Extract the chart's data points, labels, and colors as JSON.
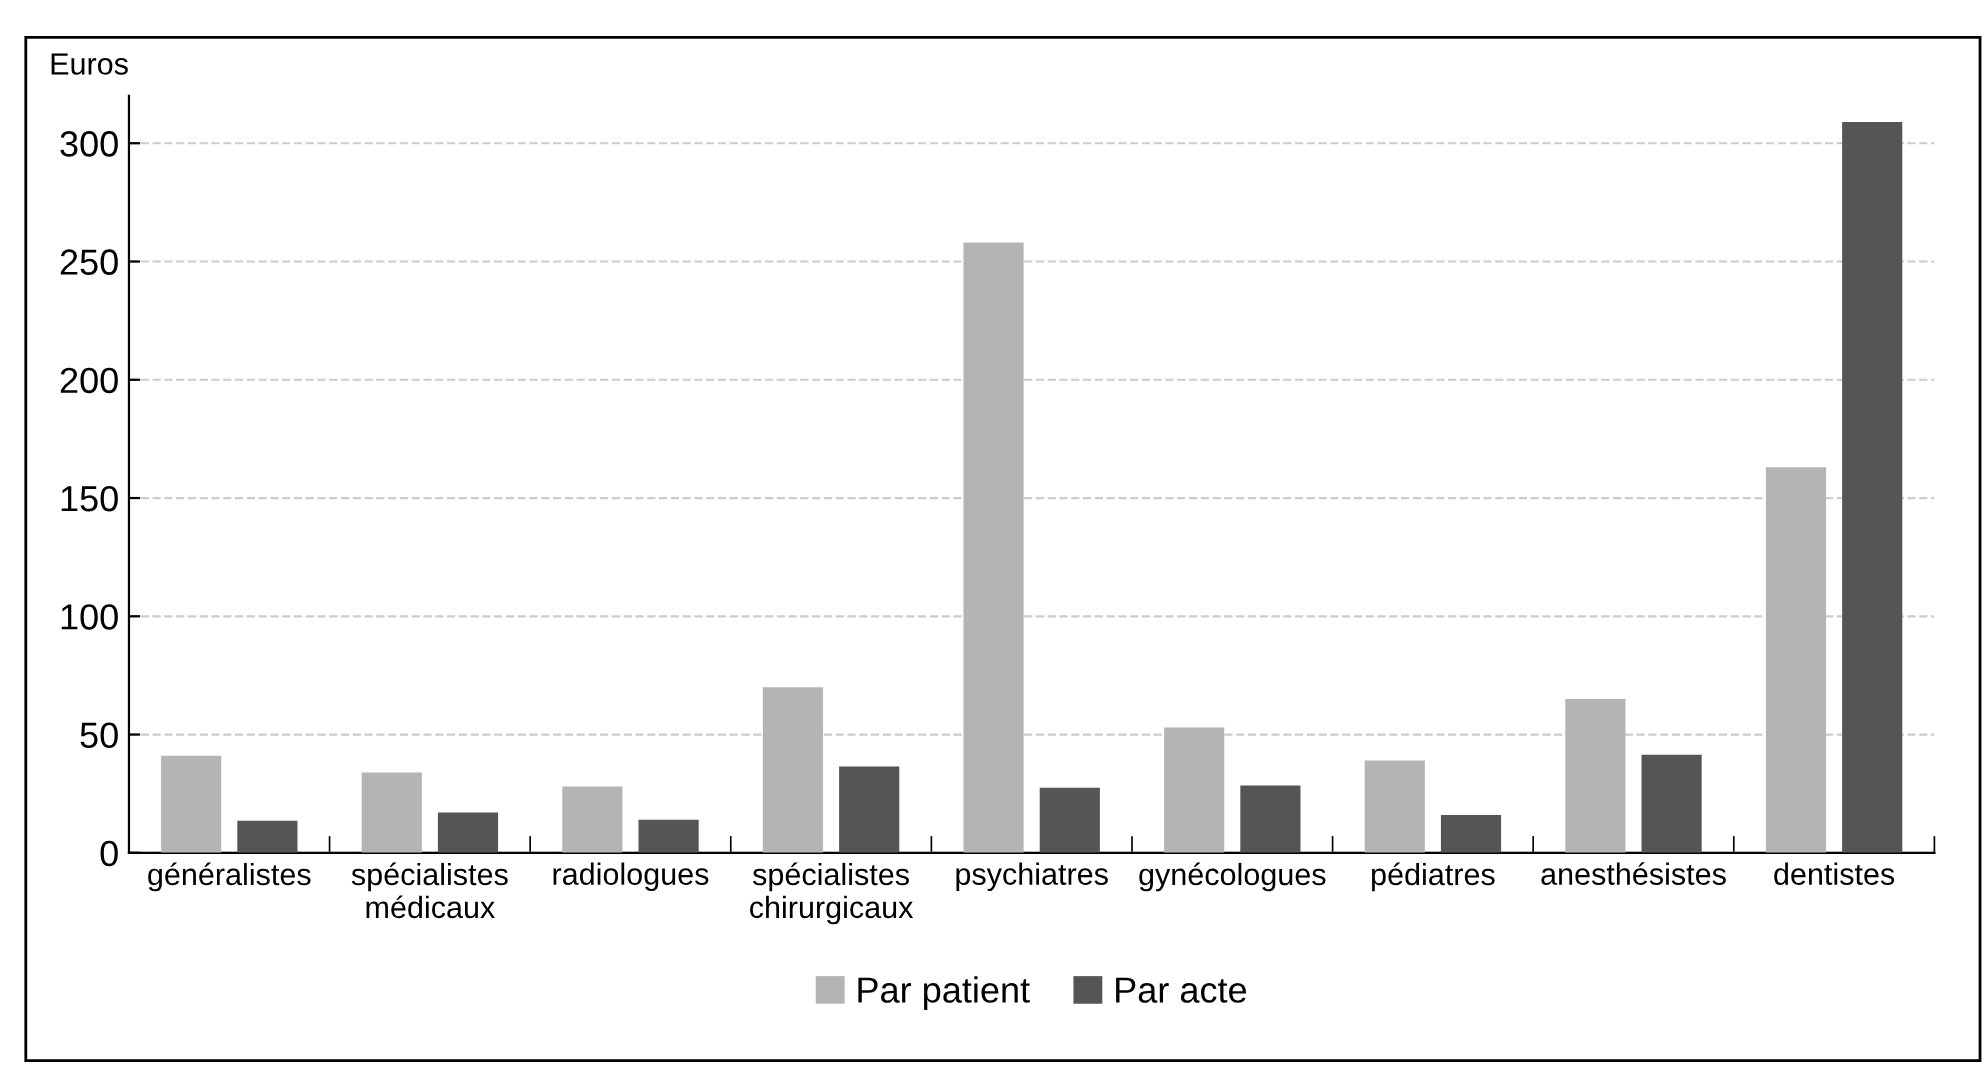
{
  "chart_data": {
    "type": "bar",
    "ylabel": "Euros",
    "categories": [
      "généralistes",
      "spécialistes\nmédicaux",
      "radiologues",
      "spécialistes\nchirurgicaux",
      "psychiatres",
      "gynécologues",
      "pédiatres",
      "anesthésistes",
      "dentistes"
    ],
    "series": [
      {
        "name": "Par patient",
        "color": "#b4b4b4",
        "values": [
          41,
          34,
          28,
          70,
          258,
          53,
          39,
          65,
          163
        ]
      },
      {
        "name": "Par acte",
        "color": "#555555",
        "values": [
          13.5,
          17,
          14,
          36.5,
          27.5,
          28.5,
          16,
          41.5,
          309
        ]
      }
    ],
    "ylim": [
      0,
      320
    ],
    "yticks": [
      0,
      50,
      100,
      150,
      200,
      250,
      300
    ],
    "grid": "y",
    "legend": "bottom"
  }
}
